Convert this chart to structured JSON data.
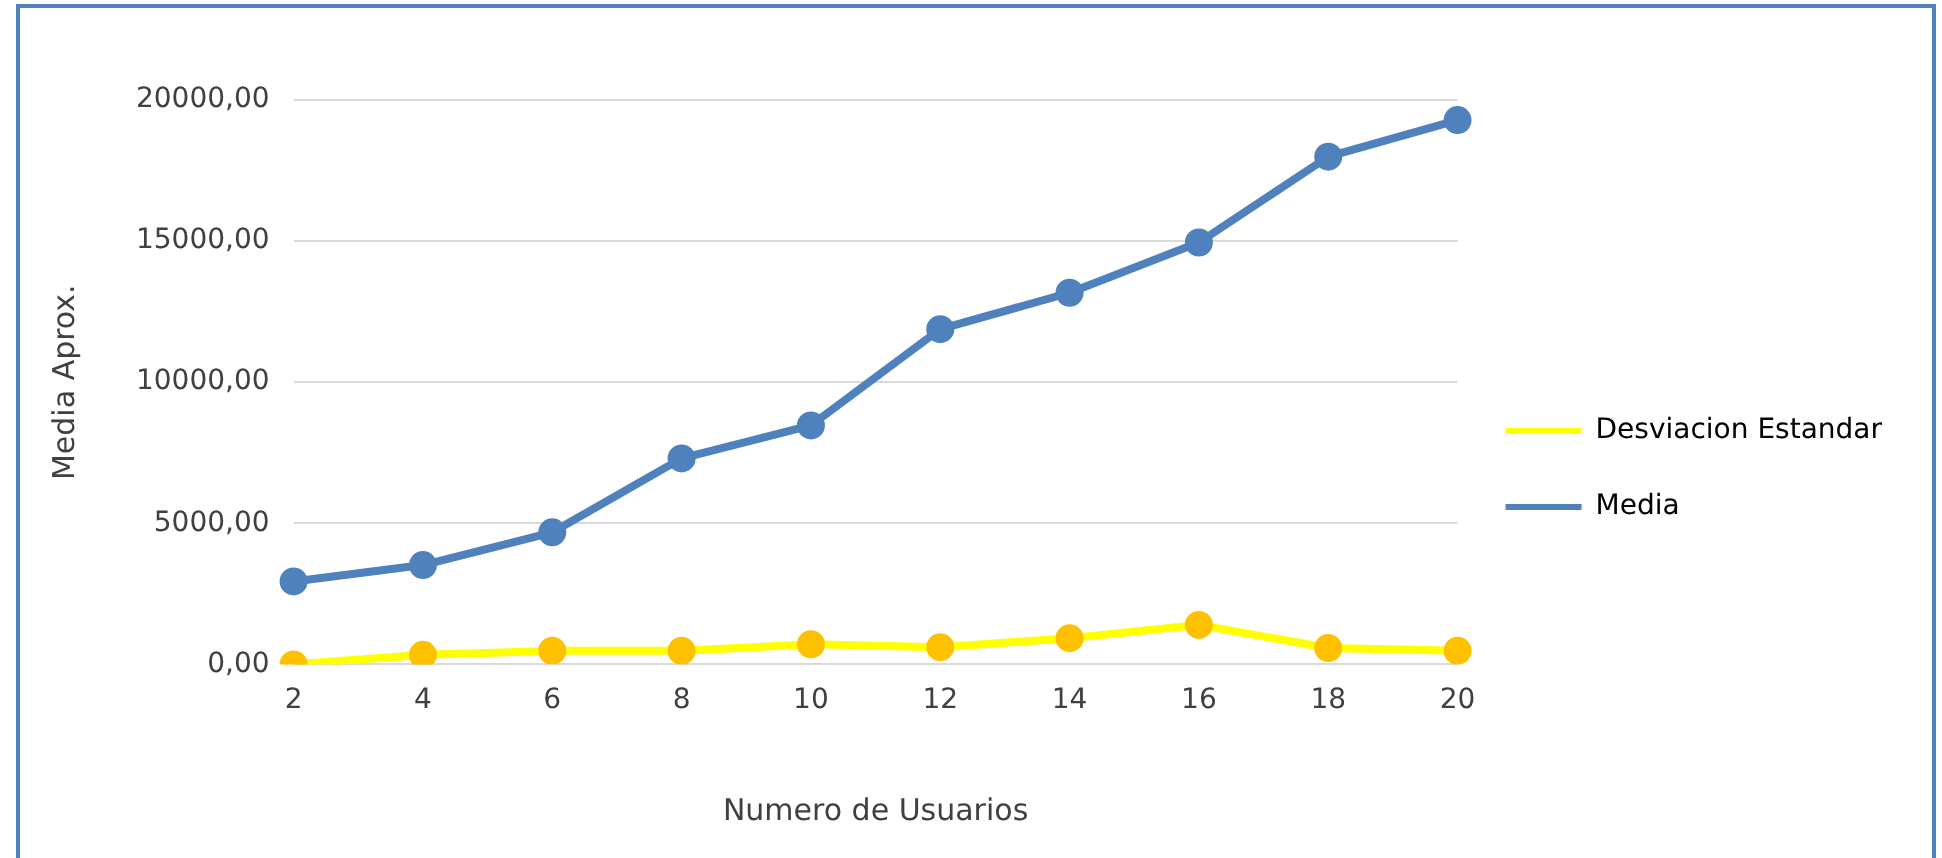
{
  "chart_data": {
    "type": "line",
    "xlabel": "Numero de Usuarios",
    "ylabel": "Media Aprox.",
    "categories": [
      "2",
      "4",
      "6",
      "8",
      "10",
      "12",
      "14",
      "16",
      "18",
      "20"
    ],
    "series": [
      {
        "name": "Desviacion Estandar",
        "color": "#ffff00",
        "colors": [
          "#ffc000",
          "#ffc000",
          "#ffc000",
          "#ffc000",
          "#ffc000",
          "#ffc000",
          "#ffc000",
          "#ffc000",
          "#ffc000",
          "#ffc000"
        ],
        "values": [
          0,
          340,
          480,
          480,
          710,
          610,
          930,
          1400,
          580,
          480
        ]
      },
      {
        "name": "Media",
        "color": "#4f81bd",
        "values": [
          2940,
          3520,
          4680,
          7300,
          8470,
          11880,
          13170,
          14950,
          17990,
          19290
        ]
      }
    ],
    "ylim": [
      0,
      20000
    ],
    "yticks": [
      {
        "value": 0,
        "label": "0,00"
      },
      {
        "value": 5000,
        "label": "5000,00"
      },
      {
        "value": 10000,
        "label": "10000,00"
      },
      {
        "value": 15000,
        "label": "15000,00"
      },
      {
        "value": 20000,
        "label": "20000,00"
      }
    ],
    "grid": "y",
    "legend": "right",
    "marker": "circle",
    "line_style": "solid"
  }
}
